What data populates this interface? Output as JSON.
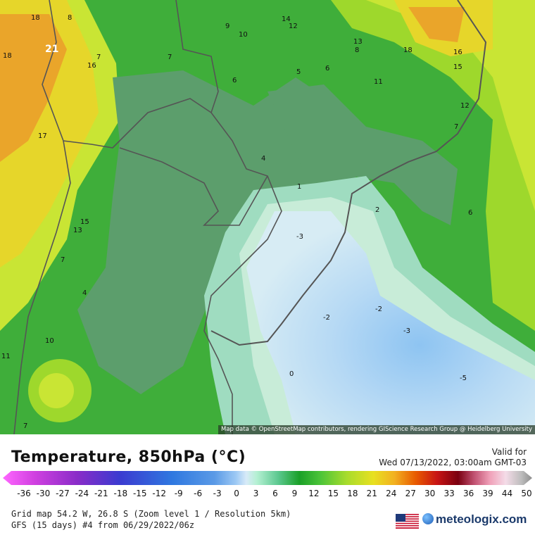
{
  "map": {
    "attribution": "Map data © OpenStreetMap contributors, rendering GIScience Research Group @ Heidelberg University",
    "contour_labels": [
      "18",
      "8",
      "21",
      "16",
      "7",
      "18",
      "9",
      "10",
      "14",
      "12",
      "13",
      "8",
      "18",
      "16",
      "15",
      "7",
      "6",
      "5",
      "6",
      "11",
      "12",
      "17",
      "7",
      "4",
      "1",
      "2",
      "6",
      "15",
      "13",
      "-3",
      "7",
      "4",
      "-2",
      "-2",
      "-3",
      "10",
      "11",
      "0",
      "-5",
      "7"
    ]
  },
  "legend": {
    "title": "Temperature, 850hPa (°C)",
    "scale_labels": [
      "-36",
      "-30",
      "-27",
      "-24",
      "-21",
      "-18",
      "-15",
      "-12",
      "-9",
      "-6",
      "-3",
      "0",
      "3",
      "6",
      "9",
      "12",
      "15",
      "18",
      "21",
      "24",
      "27",
      "30",
      "33",
      "36",
      "39",
      "44",
      "50"
    ],
    "colors": {
      "cold_end": "#ff66ff",
      "cold": "#5a9ae6",
      "zero": "#b4f0d2",
      "warm_green": "#4cc438",
      "warm": "#e8e020",
      "hot": "#e85a00",
      "dark_red": "#7a0010",
      "hot_end": "#8c8c8c"
    }
  },
  "valid": {
    "label": "Valid for",
    "time": "Wed 07/13/2022, 03:00am GMT-03"
  },
  "footer": {
    "grid_info": "Grid map 54.2 W, 26.8 S (Zoom level 1 / Resolution 5km)",
    "model_info": "GFS (15 days) #4 from  06/29/2022/06z",
    "brand": "meteologix.com"
  }
}
